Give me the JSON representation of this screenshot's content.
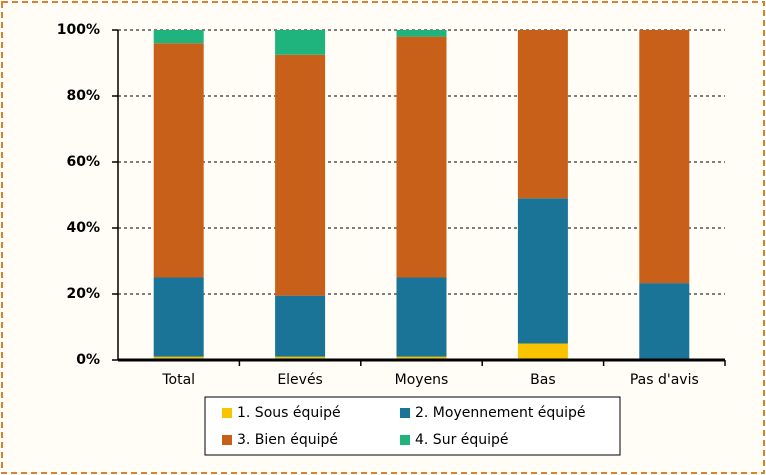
{
  "chart_data": {
    "type": "stacked_bar",
    "categories": [
      "Total",
      "Elevés",
      "Moyens",
      "Bas",
      "Pas d'avis"
    ],
    "series": [
      {
        "name": "1. Sous équipé",
        "color": "#f9c300",
        "values": [
          1,
          1,
          1,
          5,
          0
        ]
      },
      {
        "name": "2. Moyennement équipé",
        "color": "#1a7497",
        "values": [
          24,
          18.5,
          24,
          44,
          23.3
        ]
      },
      {
        "name": "3. Bien équipé",
        "color": "#c8601a",
        "values": [
          71,
          73,
          73,
          51,
          76.7
        ]
      },
      {
        "name": "4. Sur équipé",
        "color": "#1fb47e",
        "values": [
          4,
          7.5,
          2,
          0,
          0
        ]
      }
    ],
    "ylim": [
      0,
      100
    ],
    "yticks": [
      {
        "value": 0,
        "label": "0%"
      },
      {
        "value": 20,
        "label": "20%"
      },
      {
        "value": 40,
        "label": "40%"
      },
      {
        "value": 60,
        "label": "60%"
      },
      {
        "value": 80,
        "label": "80%"
      },
      {
        "value": 100,
        "label": "100%"
      }
    ],
    "grid": true
  }
}
